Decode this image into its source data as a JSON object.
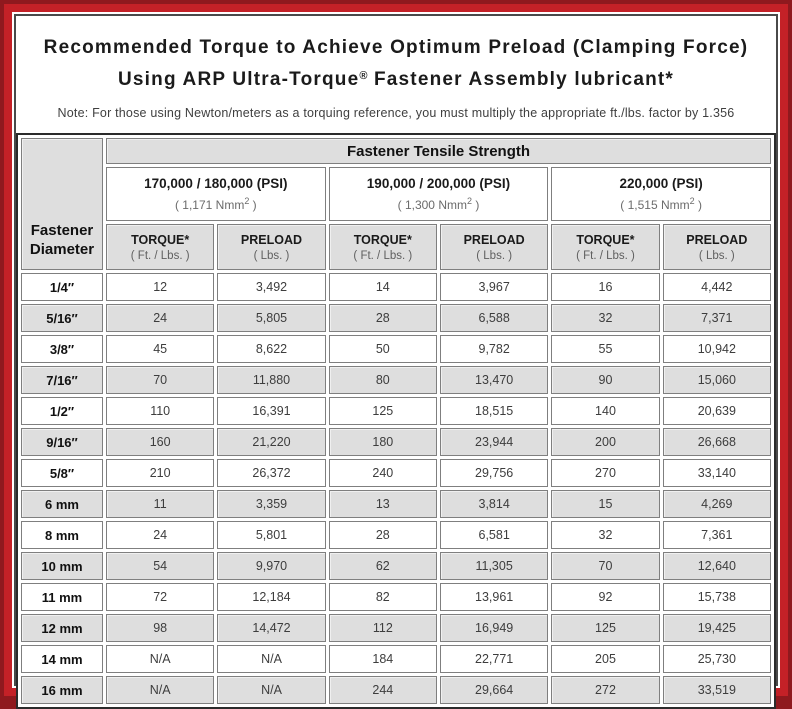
{
  "page": {
    "title_line1": "Recommended Torque to Achieve Optimum Preload (Clamping Force)",
    "title_line2": {
      "pre": "Using ARP Ultra-Torque",
      "sup": "®",
      "post": " Fastener Assembly lubricant*"
    },
    "note": "Note: For those using Newton/meters as a torquing reference, you must multiply the appropriate ft./lbs. factor by 1.356"
  },
  "colors": {
    "frame_red": "#C42127",
    "frame_dark_red": "#8F191E",
    "cell_gray": "#DEDEDE",
    "cell_border": "#7F7F7F"
  },
  "table": {
    "tensile_strength_header": "Fastener Tensile Strength",
    "diameter_header": {
      "line1": "Fastener",
      "line2": "Diameter"
    },
    "strength_groups": [
      {
        "psi": "170,000 / 180,000 (PSI)",
        "nmm": {
          "pre": "( 1,171 Nmm",
          "sup": "2",
          "post": " )"
        }
      },
      {
        "psi": "190,000 / 200,000 (PSI)",
        "nmm": {
          "pre": "( 1,300 Nmm",
          "sup": "2",
          "post": " )"
        }
      },
      {
        "psi": "220,000 (PSI)",
        "nmm": {
          "pre": "( 1,515 Nmm",
          "sup": "2",
          "post": " )"
        }
      }
    ],
    "column_headers": [
      {
        "label": "TORQUE*",
        "sub": "( Ft. / Lbs. )"
      },
      {
        "label": "PRELOAD",
        "sub": "( Lbs. )"
      },
      {
        "label": "TORQUE*",
        "sub": "( Ft. / Lbs. )"
      },
      {
        "label": "PRELOAD",
        "sub": "( Lbs. )"
      },
      {
        "label": "TORQUE*",
        "sub": "( Ft. / Lbs. )"
      },
      {
        "label": "PRELOAD",
        "sub": "( Lbs. )"
      }
    ],
    "rows": [
      {
        "diameter": "1/4″",
        "values": [
          "12",
          "3,492",
          "14",
          "3,967",
          "16",
          "4,442"
        ]
      },
      {
        "diameter": "5/16″",
        "values": [
          "24",
          "5,805",
          "28",
          "6,588",
          "32",
          "7,371"
        ]
      },
      {
        "diameter": "3/8″",
        "values": [
          "45",
          "8,622",
          "50",
          "9,782",
          "55",
          "10,942"
        ]
      },
      {
        "diameter": "7/16″",
        "values": [
          "70",
          "11,880",
          "80",
          "13,470",
          "90",
          "15,060"
        ]
      },
      {
        "diameter": "1/2″",
        "values": [
          "110",
          "16,391",
          "125",
          "18,515",
          "140",
          "20,639"
        ]
      },
      {
        "diameter": "9/16″",
        "values": [
          "160",
          "21,220",
          "180",
          "23,944",
          "200",
          "26,668"
        ]
      },
      {
        "diameter": "5/8″",
        "values": [
          "210",
          "26,372",
          "240",
          "29,756",
          "270",
          "33,140"
        ]
      },
      {
        "diameter": "6 mm",
        "values": [
          "11",
          "3,359",
          "13",
          "3,814",
          "15",
          "4,269"
        ]
      },
      {
        "diameter": "8 mm",
        "values": [
          "24",
          "5,801",
          "28",
          "6,581",
          "32",
          "7,361"
        ]
      },
      {
        "diameter": "10 mm",
        "values": [
          "54",
          "9,970",
          "62",
          "11,305",
          "70",
          "12,640"
        ]
      },
      {
        "diameter": "11 mm",
        "values": [
          "72",
          "12,184",
          "82",
          "13,961",
          "92",
          "15,738"
        ]
      },
      {
        "diameter": "12 mm",
        "values": [
          "98",
          "14,472",
          "112",
          "16,949",
          "125",
          "19,425"
        ]
      },
      {
        "diameter": "14 mm",
        "values": [
          "N/A",
          "N/A",
          "184",
          "22,771",
          "205",
          "25,730"
        ]
      },
      {
        "diameter": "16 mm",
        "values": [
          "N/A",
          "N/A",
          "244",
          "29,664",
          "272",
          "33,519"
        ]
      }
    ]
  }
}
